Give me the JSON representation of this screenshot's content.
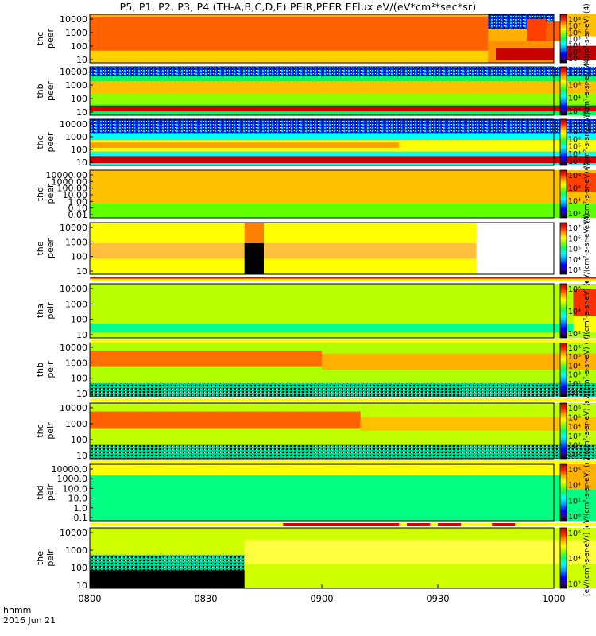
{
  "title": "P5, P1, P2, P3, P4 (TH-A,B,C,D,E) PEIR,PEER EFlux eV/(eV*cm²*sec*sr)",
  "time_axis": {
    "ticks": [
      "0800",
      "0830",
      "0900",
      "0930",
      "1000"
    ],
    "label": "hhmm",
    "date": "2016 Jun 21"
  },
  "colors": {
    "colormap": [
      "#000000",
      "#100040",
      "#0000ff",
      "#00a8ff",
      "#00ffff",
      "#00ff80",
      "#80ff00",
      "#ffff00",
      "#ffc000",
      "#ff7000",
      "#ff0000",
      "#a00000"
    ]
  },
  "chart_data": {
    "type": "heatmap",
    "x_range": [
      "0800",
      "1000"
    ],
    "panels": [
      {
        "ylabel": "thc peer",
        "yticks": [
          "10000",
          "1000",
          "100",
          "10"
        ],
        "cbar_ticks": [
          "10⁸",
          "10⁷",
          "10⁶",
          "10⁵",
          "10⁴",
          "10³",
          "10²"
        ],
        "cbar_label": "eV/(cm²-s-sr-eV) (4)"
      },
      {
        "ylabel": "thb peer",
        "yticks": [
          "10000",
          "1000",
          "100",
          "10"
        ],
        "cbar_ticks": [
          "10⁸",
          "10⁶",
          "10⁴",
          "10²"
        ],
        "cbar_label": "eV/(cm²-s-sr-eV) (4)"
      },
      {
        "ylabel": "thc peer",
        "yticks": [
          "10000",
          "1000",
          "100",
          "10"
        ],
        "cbar_ticks": [
          "10⁸",
          "10⁷",
          "10⁶",
          "10⁵",
          "10⁴",
          "10³"
        ],
        "cbar_label": "eV/(cm²-s-sr-eV) (4)"
      },
      {
        "ylabel": "thd peer",
        "yticks": [
          "10000.00",
          "1000.00",
          "100.00",
          "10.00",
          "1.00",
          "0.10",
          "0.01"
        ],
        "cbar_ticks": [
          "10⁸",
          "10⁶",
          "10⁴",
          "10²"
        ],
        "cbar_label": "eV/(cm²-s-sr-eV) (4)"
      },
      {
        "ylabel": "the peer",
        "yticks": [
          "10000",
          "1000",
          "100",
          "10"
        ],
        "cbar_ticks": [
          "10⁷",
          "10⁶",
          "10⁵",
          "10⁴",
          "10³"
        ],
        "cbar_label": "eV/(cm²-s-sr-eV) (4)"
      },
      {
        "ylabel": "tha peir",
        "yticks": [
          "10000",
          "1000",
          "100",
          "10"
        ],
        "cbar_ticks": [
          "10⁶",
          "10⁴",
          "10²"
        ],
        "cbar_label": "eV/(cm²-s-sr-eV) (4)"
      },
      {
        "ylabel": "thb peir",
        "yticks": [
          "10000",
          "1000",
          "100",
          "10"
        ],
        "cbar_ticks": [
          "10⁶",
          "10⁵",
          "10⁴",
          "10³",
          "10²",
          "10¹"
        ],
        "cbar_label": "eV/(cm²-s-sr-eV) (4)"
      },
      {
        "ylabel": "thc peir",
        "yticks": [
          "10000",
          "1000",
          "100",
          "10"
        ],
        "cbar_ticks": [
          "10⁶",
          "10⁵",
          "10⁴",
          "10³",
          "10²",
          "10¹"
        ],
        "cbar_label": "eV/(cm²-s-sr-eV) (4)"
      },
      {
        "ylabel": "thd peir",
        "yticks": [
          "10000.0",
          "1000.0",
          "100.0",
          "10.0",
          "1.0",
          "0.1"
        ],
        "cbar_ticks": [
          "10⁶",
          "10⁴",
          "10²",
          "10⁰"
        ],
        "cbar_label": "eV/(cm²-s-sr-eV) (4)"
      },
      {
        "ylabel": "the peir",
        "yticks": [
          "10000",
          "1000",
          "100",
          "10"
        ],
        "cbar_ticks": [
          "10⁶",
          "10⁴",
          "10²"
        ],
        "cbar_label": "[eV/(cm²-s-sr-eV)] (4)"
      }
    ]
  }
}
